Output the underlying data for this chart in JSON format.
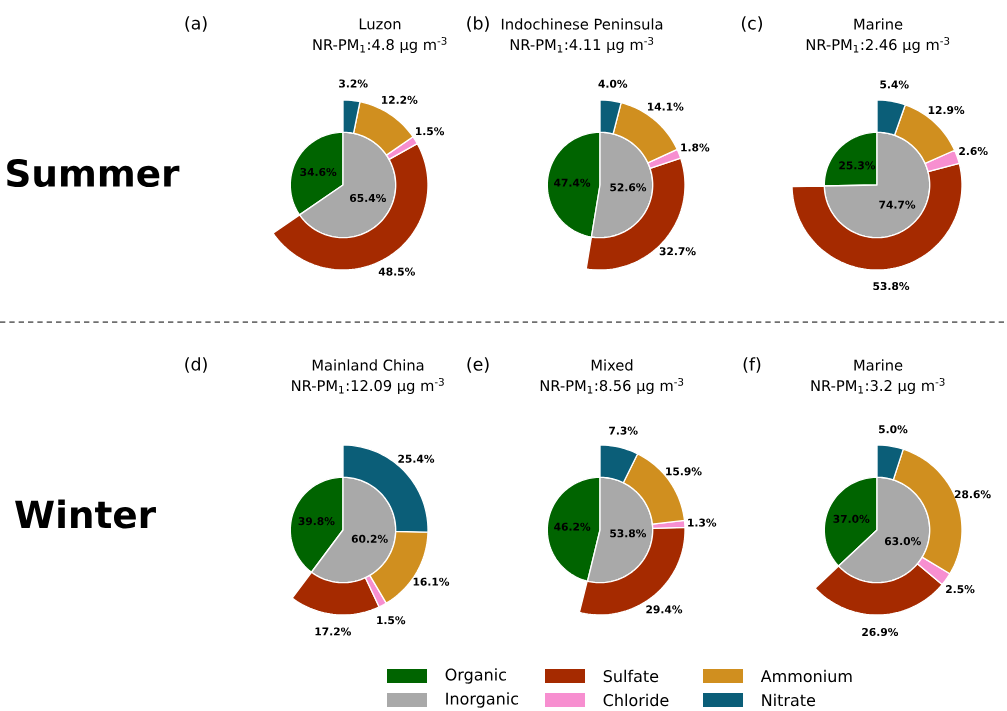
{
  "chart_data": [
    {
      "type": "pie",
      "title": "Luzon",
      "subtitle": "NR-PM$_{1}$:4.8 μg m$^{-3}$",
      "annotations": [
        "(a)",
        "Summer"
      ],
      "legend": "bottom",
      "categories": [
        "Organic",
        "Inorganic",
        "Sulfate",
        "Chloride",
        "Ammonium",
        "Nitrate"
      ],
      "colors": [
        "#006400",
        "#a9a9a9",
        "#a52a00",
        "#f78fd0",
        "#d08f1f",
        "#0b5e78"
      ],
      "series": [
        {
          "type": "pie",
          "values": [
            34.6,
            65.4,
            null,
            null,
            null,
            null
          ],
          "value_labels": [
            "34.6%",
            "65.4%",
            null,
            null,
            null,
            null
          ]
        },
        {
          "type": "donut",
          "values": [
            null,
            null,
            48.5,
            1.5,
            12.2,
            3.2
          ],
          "value_labels": [
            null,
            null,
            "48.5%",
            "1.5%",
            "12.2%",
            "3.2%"
          ]
        }
      ]
    },
    {
      "type": "pie",
      "title": "Indochinese Peninsula",
      "subtitle": "NR-PM$_{1}$:4.11 μg m$^{-3}$",
      "annotations": [
        "(b)"
      ],
      "colors": [
        "#006400",
        "#a9a9a9",
        "#a52a00",
        "#f78fd0",
        "#d08f1f",
        "#0b5e78"
      ],
      "series": [
        {
          "type": "pie",
          "values": [
            47.4,
            52.6,
            null,
            null,
            null,
            null
          ],
          "value_labels": [
            "47.4%",
            "52.6%",
            null,
            null,
            null,
            null
          ]
        },
        {
          "type": "donut",
          "values": [
            null,
            null,
            32.7,
            1.8,
            14.1,
            4.0
          ],
          "value_labels": [
            null,
            null,
            "32.7%",
            "1.8%",
            "14.1%",
            "4.0%"
          ]
        }
      ]
    },
    {
      "type": "pie",
      "title": "Marine",
      "subtitle": "NR-PM$_{1}$:2.46 μg m$^{-3}$",
      "annotations": [
        "(c)"
      ],
      "colors": [
        "#006400",
        "#a9a9a9",
        "#a52a00",
        "#f78fd0",
        "#d08f1f",
        "#0b5e78"
      ],
      "series": [
        {
          "type": "pie",
          "values": [
            25.3,
            74.7,
            null,
            null,
            null,
            null
          ],
          "value_labels": [
            "25.3%",
            "74.7%",
            null,
            null,
            null,
            null
          ]
        },
        {
          "type": "donut",
          "values": [
            null,
            null,
            53.8,
            2.6,
            12.9,
            5.4
          ],
          "value_labels": [
            null,
            null,
            "53.8%",
            "2.6%",
            "12.9%",
            "5.4%"
          ]
        }
      ]
    },
    {
      "type": "pie",
      "title": "Mainland China",
      "subtitle": "NR-PM$_{1}$:12.09 μg m$^{-3}$",
      "annotations": [
        "(d)",
        "Winter"
      ],
      "colors": [
        "#006400",
        "#a9a9a9",
        "#a52a00",
        "#f78fd0",
        "#d08f1f",
        "#0b5e78"
      ],
      "series": [
        {
          "type": "pie",
          "values": [
            39.8,
            60.2,
            null,
            null,
            null,
            null
          ],
          "value_labels": [
            "39.8%",
            "60.2%",
            null,
            null,
            null,
            null
          ]
        },
        {
          "type": "donut",
          "values": [
            null,
            null,
            17.2,
            1.5,
            16.1,
            25.4
          ],
          "value_labels": [
            null,
            null,
            "17.2%",
            "1.5%",
            "16.1%",
            "25.4%"
          ]
        }
      ]
    },
    {
      "type": "pie",
      "title": "Mixed",
      "subtitle": "NR-PM$_{1}$:8.56 μg m$^{-3}$",
      "annotations": [
        "(e)"
      ],
      "colors": [
        "#006400",
        "#a9a9a9",
        "#a52a00",
        "#f78fd0",
        "#d08f1f",
        "#0b5e78"
      ],
      "series": [
        {
          "type": "pie",
          "values": [
            46.2,
            53.8,
            null,
            null,
            null,
            null
          ],
          "value_labels": [
            "46.2%",
            "53.8%",
            null,
            null,
            null,
            null
          ]
        },
        {
          "type": "donut",
          "values": [
            null,
            null,
            29.4,
            1.3,
            15.9,
            7.3
          ],
          "value_labels": [
            null,
            null,
            "29.4%",
            "1.3%",
            "15.9%",
            "7.3%"
          ]
        }
      ]
    },
    {
      "type": "pie",
      "title": "Marine",
      "subtitle": "NR-PM$_{1}$:3.2 μg m$^{-3}$",
      "annotations": [
        "(f)"
      ],
      "colors": [
        "#006400",
        "#a9a9a9",
        "#a52a00",
        "#f78fd0",
        "#d08f1f",
        "#0b5e78"
      ],
      "series": [
        {
          "type": "pie",
          "values": [
            37.0,
            63.0,
            null,
            null,
            null,
            null
          ],
          "value_labels": [
            "37.0%",
            "63.0%",
            null,
            null,
            null,
            null
          ]
        },
        {
          "type": "donut",
          "values": [
            null,
            null,
            26.9,
            2.5,
            28.6,
            5.0
          ],
          "value_labels": [
            null,
            null,
            "26.9%",
            "2.5%",
            "28.6%",
            "5.0%"
          ]
        }
      ]
    }
  ]
}
